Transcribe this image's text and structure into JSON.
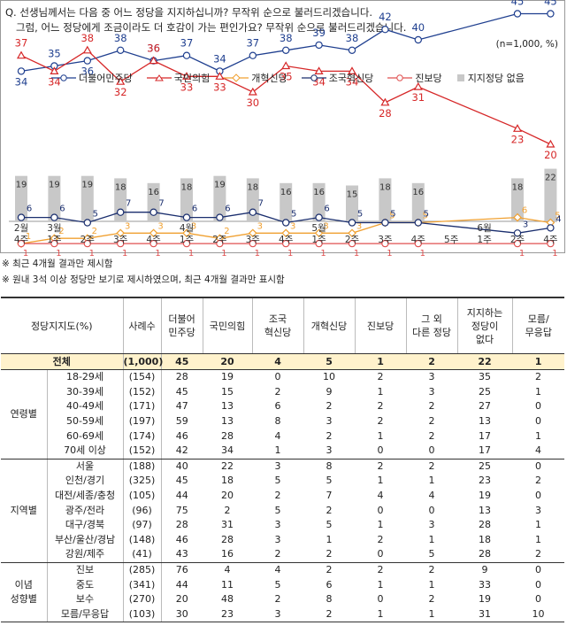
{
  "question": {
    "line1": "Q. 선생님께서는 다음 중 어느 정당을 지지하십니까? 무작위 순으로 불러드리겠습니다.",
    "line2": "그럼, 어느 정당에게 조금이라도 더 호감이 가는 편인가요? 무작위 순으로 불러드리겠습니다."
  },
  "unit": "(n=1,000, %)",
  "notes": [
    "※ 최근 4개월 결과만 제시함",
    "※ 원내 3석 이상 정당만 보기로 제시하였으며, 최근 4개월 결과만 표시함"
  ],
  "chart_data": {
    "type": "line",
    "x": [
      "2월 4주",
      "1주",
      "2주",
      "3주",
      "4주",
      "4월 1주",
      "2주",
      "3주",
      "4주",
      "5월 1주",
      "2주",
      "3주",
      "4주",
      "5주",
      "6월 1주",
      "2주",
      "4주"
    ],
    "x_ticks": [
      {
        "l1": "2월",
        "l2": "4주"
      },
      {
        "l1": "3월",
        "l2": "1주"
      },
      {
        "l1": "",
        "l2": "2주"
      },
      {
        "l1": "",
        "l2": "3주"
      },
      {
        "l1": "",
        "l2": "4주"
      },
      {
        "l1": "4월",
        "l2": "1주"
      },
      {
        "l1": "",
        "l2": "2주"
      },
      {
        "l1": "",
        "l2": "3주"
      },
      {
        "l1": "",
        "l2": "4주"
      },
      {
        "l1": "5월",
        "l2": "1주"
      },
      {
        "l1": "",
        "l2": "2주"
      },
      {
        "l1": "",
        "l2": "3주"
      },
      {
        "l1": "",
        "l2": "4주"
      },
      {
        "l1": "",
        "l2": "5주"
      },
      {
        "l1": "6월",
        "l2": "1주"
      },
      {
        "l1": "",
        "l2": "2주"
      },
      {
        "l1": "",
        "l2": "4주"
      }
    ],
    "series": [
      {
        "name": "더불어민주당",
        "color": "#1f3f8f",
        "marker": "circle",
        "values": [
          34,
          35,
          36,
          38,
          36,
          37,
          34,
          37,
          38,
          39,
          38,
          42,
          40,
          null,
          null,
          45,
          45
        ]
      },
      {
        "name": "국민의힘",
        "color": "#d62728",
        "marker": "triangle",
        "values": [
          37,
          34,
          38,
          32,
          36,
          33,
          33,
          30,
          35,
          34,
          34,
          28,
          31,
          null,
          null,
          23,
          20
        ]
      },
      {
        "name": "개혁신당",
        "color": "#f0a030",
        "marker": "diamond",
        "values": [
          1,
          2,
          2,
          3,
          3,
          3,
          2,
          3,
          3,
          3,
          3,
          5,
          5,
          null,
          null,
          6,
          5
        ]
      },
      {
        "name": "조국혁신당",
        "color": "#1a2e6e",
        "marker": "circle",
        "values": [
          6,
          6,
          5,
          7,
          7,
          6,
          6,
          7,
          5,
          6,
          5,
          5,
          5,
          null,
          null,
          3,
          4
        ]
      },
      {
        "name": "진보당",
        "color": "#e05050",
        "marker": "circle",
        "values": [
          1,
          1,
          1,
          1,
          1,
          1,
          1,
          1,
          1,
          1,
          1,
          1,
          1,
          null,
          null,
          1,
          1
        ]
      }
    ],
    "bars": {
      "name": "지지정당 없음",
      "color": "#c8c8c8",
      "values": [
        19,
        19,
        19,
        18,
        16,
        18,
        19,
        18,
        16,
        16,
        15,
        18,
        16,
        null,
        null,
        18,
        22
      ]
    }
  },
  "table": {
    "headers": [
      "정당지지도(%)",
      "사례수",
      "더불어민주당",
      "국민의힘",
      "조국혁신당",
      "개혁신당",
      "진보당",
      "그 외 다른 정당",
      "지지하는 정당이 없다",
      "모름/무응답"
    ],
    "header_lines": [
      [
        "정당지지도(%)"
      ],
      [
        "사례수"
      ],
      [
        "더불어",
        "민주당"
      ],
      [
        "국민의힘"
      ],
      [
        "조국",
        "혁신당"
      ],
      [
        "개혁신당"
      ],
      [
        "진보당"
      ],
      [
        "그 외",
        "다른 정당"
      ],
      [
        "지지하는",
        "정당이",
        "없다"
      ],
      [
        "모름/",
        "무응답"
      ]
    ],
    "total": {
      "label": "전체",
      "n": "(1,000)",
      "v": [
        "45",
        "20",
        "4",
        "5",
        "1",
        "2",
        "22",
        "1"
      ]
    },
    "groups": [
      {
        "name": "연령별",
        "rows": [
          {
            "label": "18-29세",
            "n": "(154)",
            "v": [
              "28",
              "19",
              "0",
              "10",
              "2",
              "3",
              "35",
              "2"
            ]
          },
          {
            "label": "30-39세",
            "n": "(152)",
            "v": [
              "45",
              "15",
              "2",
              "9",
              "1",
              "3",
              "25",
              "1"
            ]
          },
          {
            "label": "40-49세",
            "n": "(171)",
            "v": [
              "47",
              "13",
              "6",
              "2",
              "2",
              "2",
              "27",
              "0"
            ]
          },
          {
            "label": "50-59세",
            "n": "(197)",
            "v": [
              "59",
              "13",
              "8",
              "3",
              "2",
              "2",
              "13",
              "0"
            ]
          },
          {
            "label": "60-69세",
            "n": "(174)",
            "v": [
              "46",
              "28",
              "4",
              "2",
              "1",
              "2",
              "17",
              "1"
            ]
          },
          {
            "label": "70세 이상",
            "n": "(152)",
            "v": [
              "42",
              "34",
              "1",
              "3",
              "0",
              "0",
              "17",
              "4"
            ]
          }
        ]
      },
      {
        "name": "지역별",
        "rows": [
          {
            "label": "서울",
            "n": "(188)",
            "v": [
              "40",
              "22",
              "3",
              "8",
              "2",
              "2",
              "25",
              "0"
            ]
          },
          {
            "label": "인천/경기",
            "n": "(325)",
            "v": [
              "45",
              "18",
              "5",
              "5",
              "1",
              "1",
              "23",
              "2"
            ]
          },
          {
            "label": "대전/세종/충청",
            "n": "(105)",
            "v": [
              "44",
              "20",
              "2",
              "7",
              "4",
              "4",
              "19",
              "0"
            ]
          },
          {
            "label": "광주/전라",
            "n": "(96)",
            "v": [
              "75",
              "2",
              "5",
              "2",
              "0",
              "0",
              "13",
              "3"
            ]
          },
          {
            "label": "대구/경북",
            "n": "(97)",
            "v": [
              "28",
              "31",
              "3",
              "5",
              "1",
              "3",
              "28",
              "1"
            ]
          },
          {
            "label": "부산/울산/경남",
            "n": "(148)",
            "v": [
              "46",
              "28",
              "3",
              "1",
              "2",
              "1",
              "18",
              "1"
            ]
          },
          {
            "label": "강원/제주",
            "n": "(41)",
            "v": [
              "43",
              "16",
              "2",
              "2",
              "0",
              "5",
              "28",
              "2"
            ]
          }
        ]
      },
      {
        "name": "이념\n성향별",
        "rows": [
          {
            "label": "진보",
            "n": "(285)",
            "v": [
              "76",
              "4",
              "4",
              "2",
              "2",
              "2",
              "9",
              "0"
            ]
          },
          {
            "label": "중도",
            "n": "(341)",
            "v": [
              "44",
              "11",
              "5",
              "6",
              "1",
              "1",
              "33",
              "0"
            ]
          },
          {
            "label": "보수",
            "n": "(270)",
            "v": [
              "20",
              "48",
              "2",
              "8",
              "0",
              "2",
              "19",
              "0"
            ]
          },
          {
            "label": "모름/무응답",
            "n": "(103)",
            "v": [
              "30",
              "23",
              "3",
              "2",
              "1",
              "1",
              "31",
              "10"
            ]
          }
        ]
      }
    ]
  }
}
